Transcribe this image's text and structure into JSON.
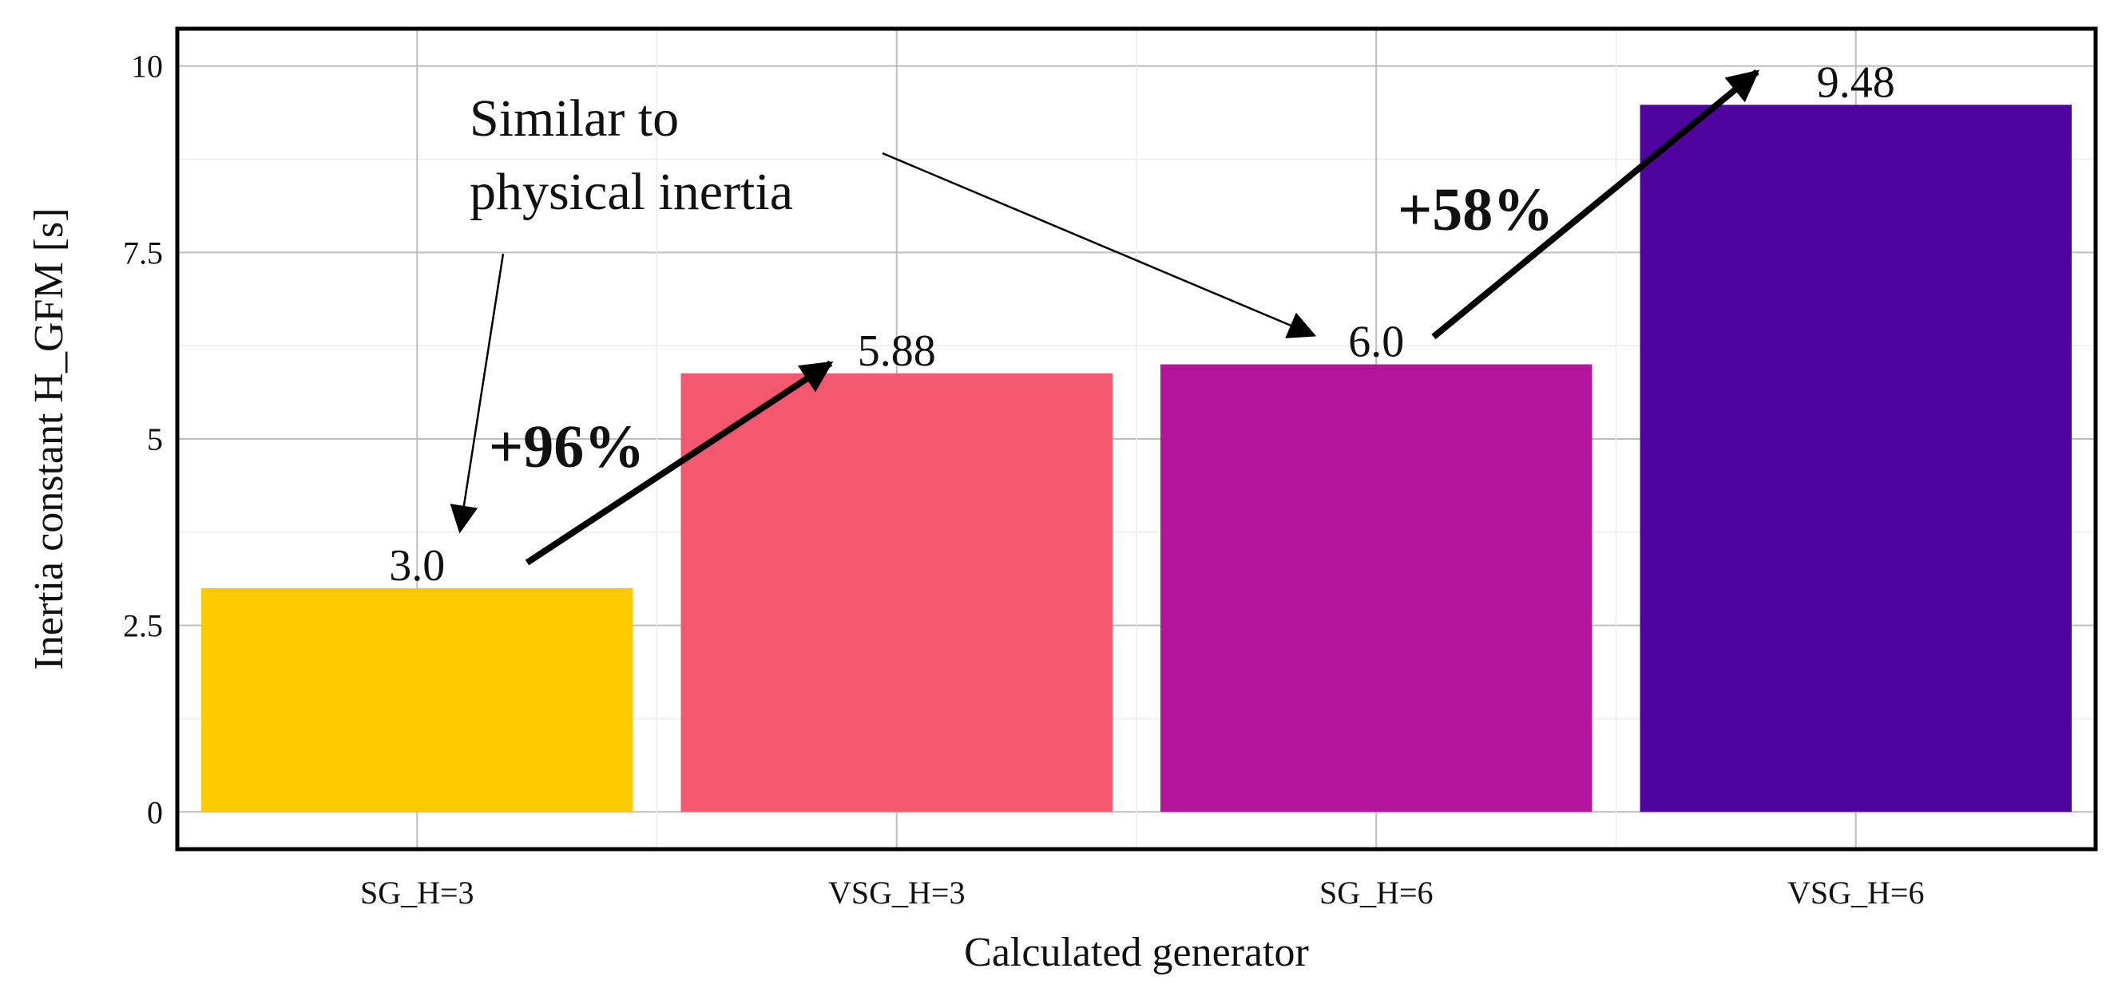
{
  "chart_data": {
    "type": "bar",
    "categories": [
      "SG_H=3",
      "VSG_H=3",
      "SG_H=6",
      "VSG_H=6"
    ],
    "values": [
      3.0,
      5.88,
      6.0,
      9.48
    ],
    "value_labels": [
      "3.0",
      "5.88",
      "6.0",
      "9.48"
    ],
    "colors": [
      "#FFCA00",
      "#F4586E",
      "#B5149D",
      "#4F04A0"
    ],
    "xlabel": "Calculated generator",
    "ylabel": "Inertia constant H_GFM [s]",
    "ylim": [
      -0.5,
      10.5
    ],
    "yticks": [
      0,
      2.5,
      5,
      7.5,
      10
    ],
    "ytick_labels": [
      "0",
      "2.5",
      "5",
      "7.5",
      "10"
    ],
    "grid": true,
    "annotations": {
      "similar_text_line1": "Similar to",
      "similar_text_line2": "physical inertia",
      "increase_1": "+96%",
      "increase_2": "+58%"
    }
  }
}
